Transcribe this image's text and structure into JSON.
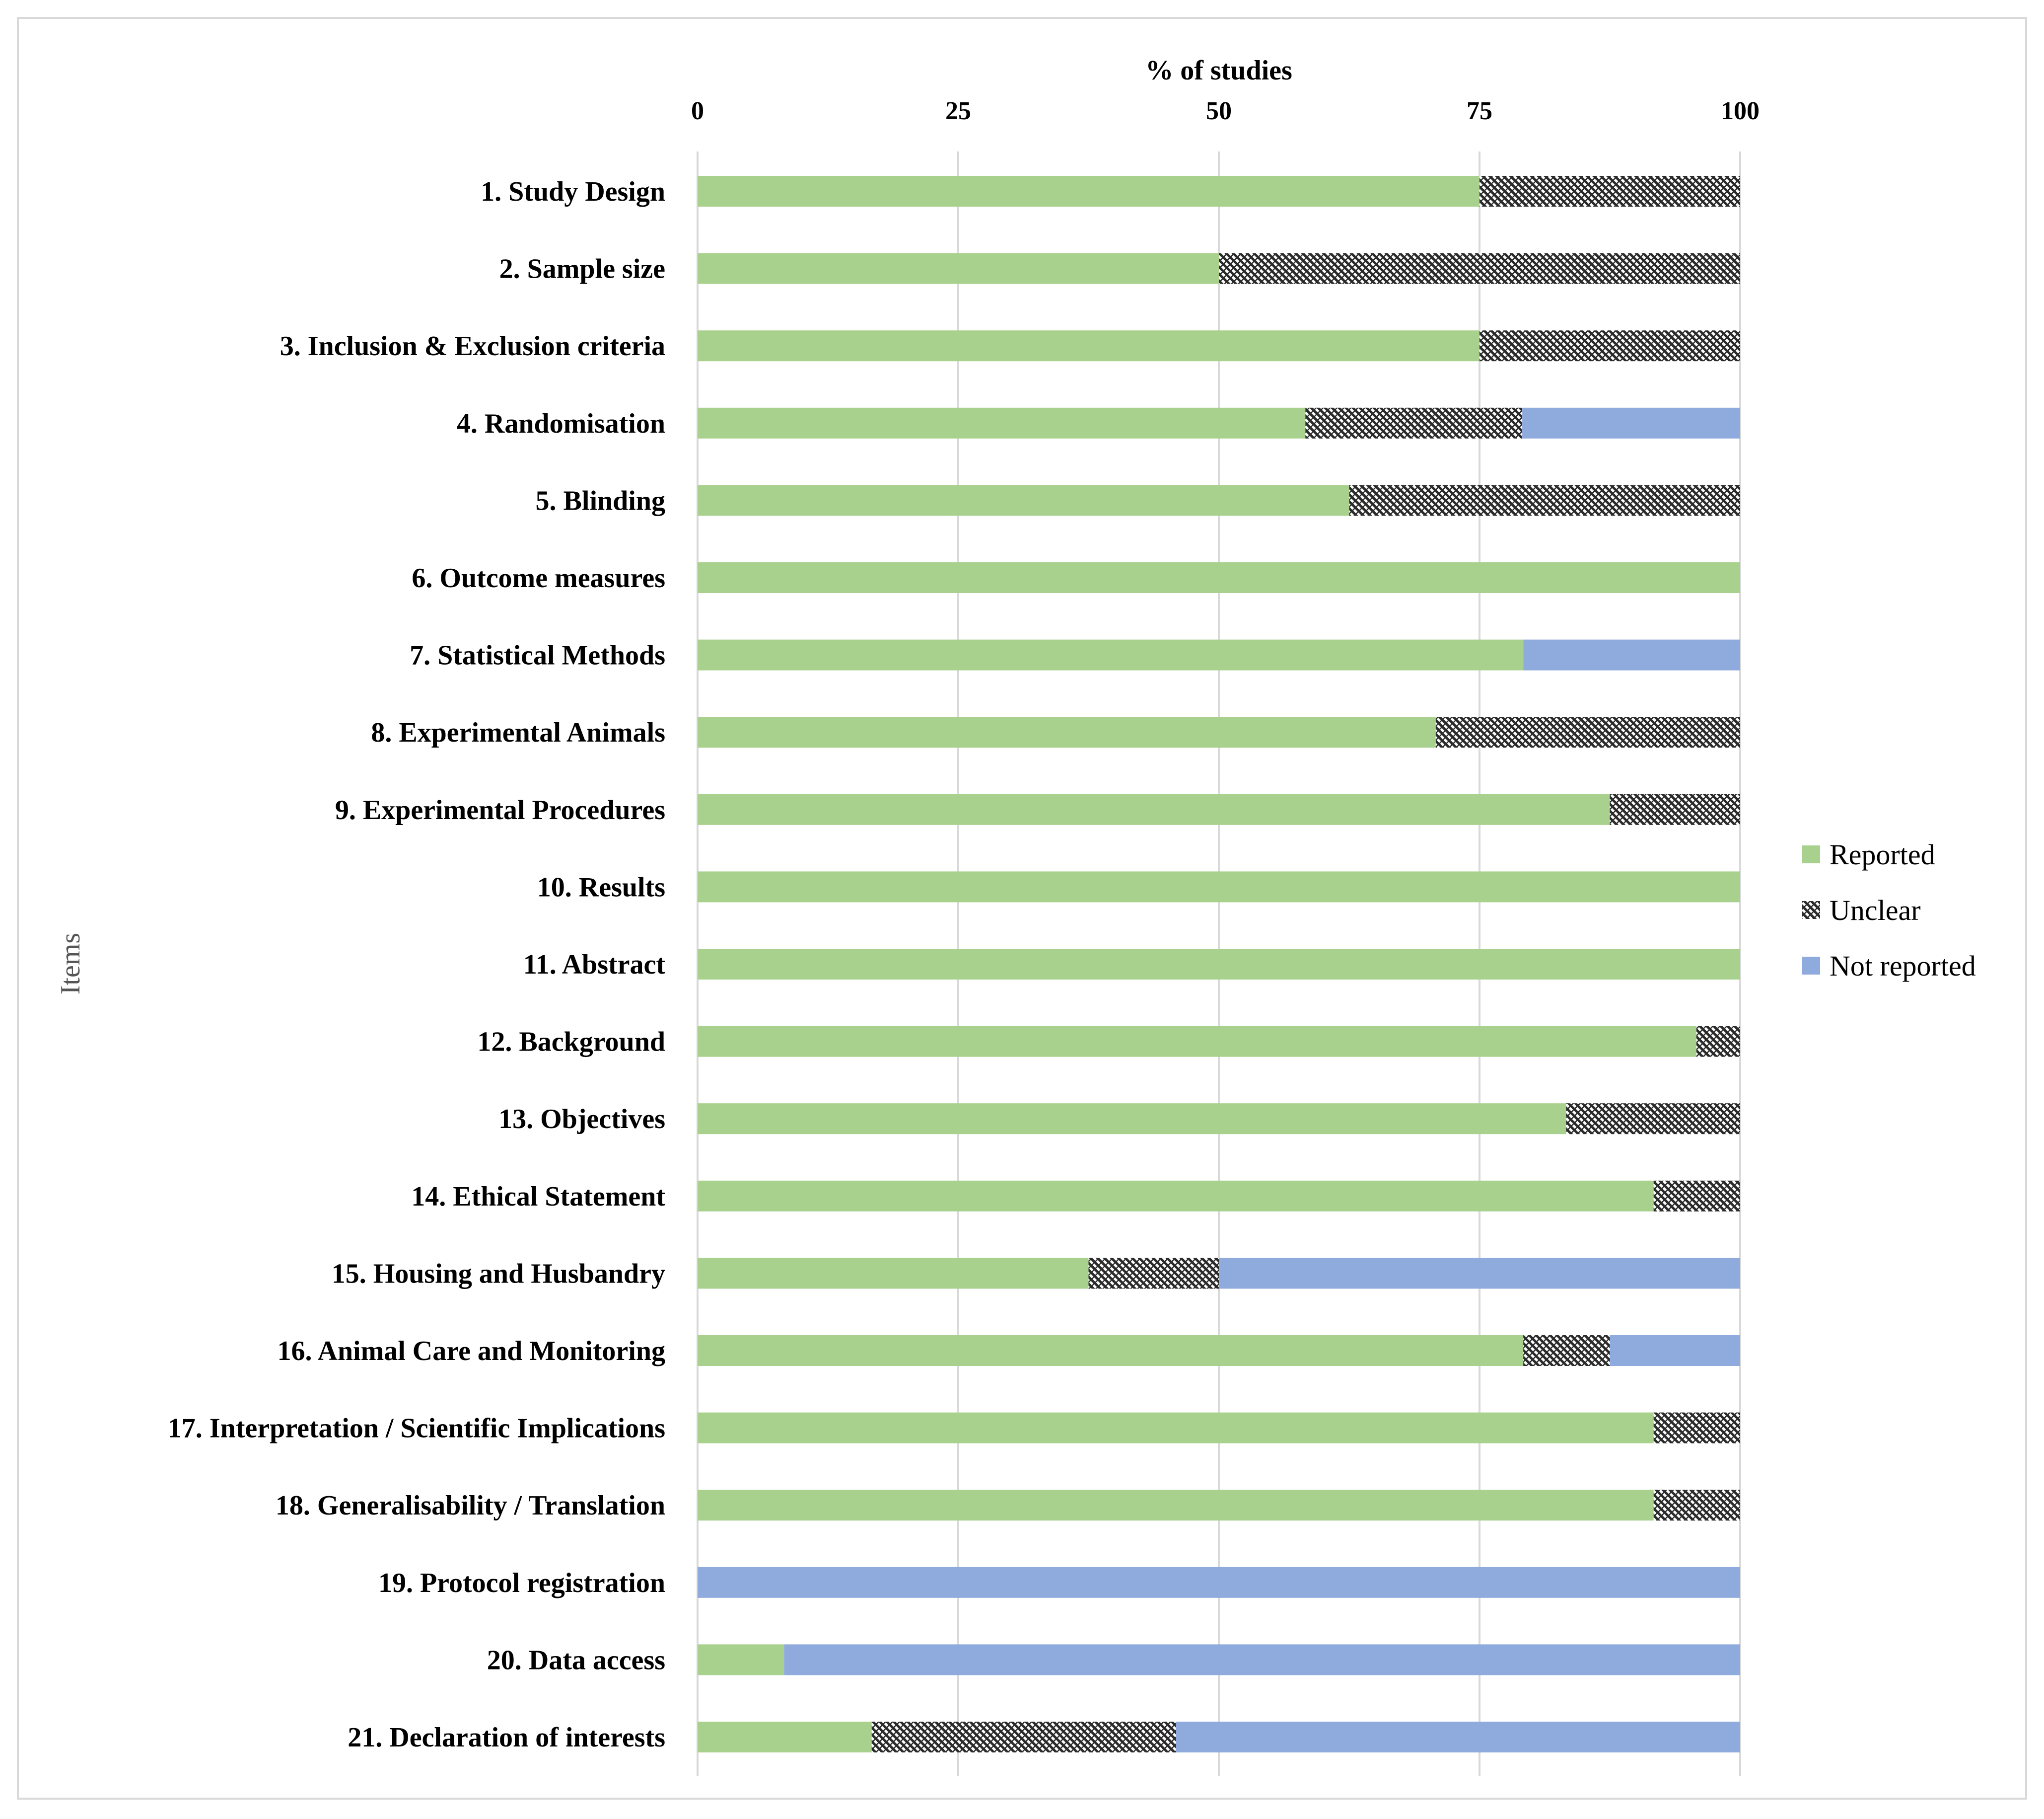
{
  "chart_data": {
    "type": "bar",
    "orientation": "horizontal",
    "stacked": true,
    "title": "",
    "xlabel": "% of studies",
    "ylabel": "Items",
    "xlim": [
      0,
      100
    ],
    "xticks": [
      0,
      25,
      50,
      75,
      100
    ],
    "grid": true,
    "legend_position": "right",
    "categories": [
      "1. Study Design",
      "2. Sample size",
      "3. Inclusion & Exclusion criteria",
      "4. Randomisation",
      "5. Blinding",
      "6. Outcome measures",
      "7. Statistical Methods",
      "8. Experimental Animals",
      "9. Experimental Procedures",
      "10. Results",
      "11. Abstract",
      "12. Background",
      "13. Objectives",
      "14. Ethical Statement",
      "15. Housing and Husbandry",
      "16. Animal Care and Monitoring",
      "17. Interpretation / Scientific Implications",
      "18. Generalisability / Translation",
      "19. Protocol registration",
      "20. Data access",
      "21. Declaration of interests"
    ],
    "series": [
      {
        "name": "Reported",
        "color": "#a9d18e",
        "pattern": "solid",
        "values": [
          75,
          50,
          75,
          58.3,
          62.5,
          100,
          79.2,
          70.8,
          87.5,
          100,
          100,
          95.8,
          83.3,
          91.7,
          37.5,
          79.2,
          91.7,
          91.7,
          0,
          8.3,
          16.7
        ]
      },
      {
        "name": "Unclear",
        "color": "#3a3a3a",
        "pattern": "hatch",
        "values": [
          25,
          50,
          25,
          20.8,
          37.5,
          0,
          0,
          29.2,
          12.5,
          0,
          0,
          4.2,
          16.7,
          8.3,
          12.5,
          8.3,
          8.3,
          8.3,
          0,
          0,
          29.2
        ]
      },
      {
        "name": "Not reported",
        "color": "#8faadc",
        "pattern": "solid",
        "values": [
          0,
          0,
          0,
          20.9,
          0,
          0,
          20.8,
          0,
          0,
          0,
          0,
          0,
          0,
          0,
          50,
          12.5,
          0,
          0,
          100,
          91.7,
          54.1
        ]
      }
    ]
  }
}
